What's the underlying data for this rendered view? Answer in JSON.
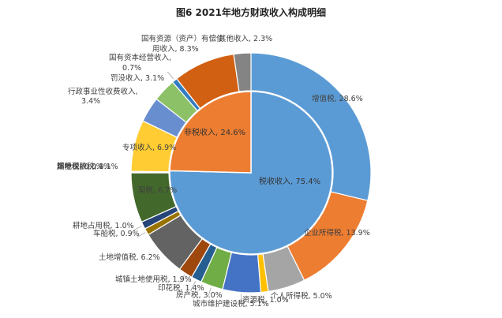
{
  "chart_data": {
    "type": "pie",
    "title": "图6 2021年地方财政收入构成明细",
    "inner_ring": [
      {
        "name": "税收收入",
        "value": 75.4,
        "color": "#5B9BD5"
      },
      {
        "name": "非税收入",
        "value": 24.6,
        "color": "#ED7D31"
      }
    ],
    "outer_ring": [
      {
        "name": "增值税",
        "value": 28.6,
        "color": "#5B9BD5"
      },
      {
        "name": "企业所得税",
        "value": 13.9,
        "color": "#ED7D31"
      },
      {
        "name": "个人所得税",
        "value": 5.0,
        "color": "#A5A5A5"
      },
      {
        "name": "资源税",
        "value": 1.0,
        "color": "#FFC000"
      },
      {
        "name": "城市维护建设税",
        "value": 5.1,
        "color": "#4472C4"
      },
      {
        "name": "房产税",
        "value": 3.0,
        "color": "#70AD47"
      },
      {
        "name": "印花税",
        "value": 1.4,
        "color": "#255E91"
      },
      {
        "name": "城镇土地使用税",
        "value": 1.9,
        "color": "#9E480E"
      },
      {
        "name": "土地增值税",
        "value": 6.2,
        "color": "#636363"
      },
      {
        "name": "车船税",
        "value": 0.9,
        "color": "#997300"
      },
      {
        "name": "耕地占用税",
        "value": 1.0,
        "color": "#264478"
      },
      {
        "name": "契税",
        "value": 6.7,
        "color": "#43682B"
      },
      {
        "name": "烟叶税",
        "value": 0.0,
        "color": "#7CAFDD"
      },
      {
        "name": "环境保护税",
        "value": 0.1,
        "color": "#F1975A"
      },
      {
        "name": "其他税收",
        "value": 0.1,
        "color": "#B7B7B7"
      },
      {
        "name": "专项收入",
        "value": 6.9,
        "color": "#FFCD33"
      },
      {
        "name": "行政事业性收费收入",
        "value": 3.4,
        "color": "#698ED0"
      },
      {
        "name": "罚没收入",
        "value": 3.1,
        "color": "#8CC168"
      },
      {
        "name": "国有资本经营收入",
        "value": 0.7,
        "color": "#327DC2"
      },
      {
        "name": "国有资源（资产）有偿使用收入",
        "value": 8.3,
        "color": "#D26012"
      },
      {
        "name": "其他收入",
        "value": 2.3,
        "color": "#848484"
      }
    ]
  },
  "labels": {
    "inner": [
      "税收收入, 75.4%",
      "非税收入, 24.6%"
    ],
    "outer": [
      "增值税, 28.6%",
      "企业所得税, 13.9%",
      "个人所得税, 5.0%",
      "资源税, 1.0%",
      "城市维护建设税, 5.1%",
      "房产税, 3.0%",
      "印花税, 1.4%",
      "城镇土地使用税, 1.9%",
      "土地增值税, 6.2%",
      "车船税, 0.9%",
      "耕地占用税, 1.0%",
      "契税, 6.7%",
      "烟叶税, 0.0%",
      "环境保护税, 0.1%",
      "其他税收, 0.1%",
      "专项收入, 6.9%",
      "行政事业性收费收入, 3.4%",
      "罚没收入, 3.1%",
      "国有资本经营收入, 0.7%",
      "国有资源（资产）有偿使用收入, 8.3%",
      "其他收入, 2.3%"
    ]
  }
}
